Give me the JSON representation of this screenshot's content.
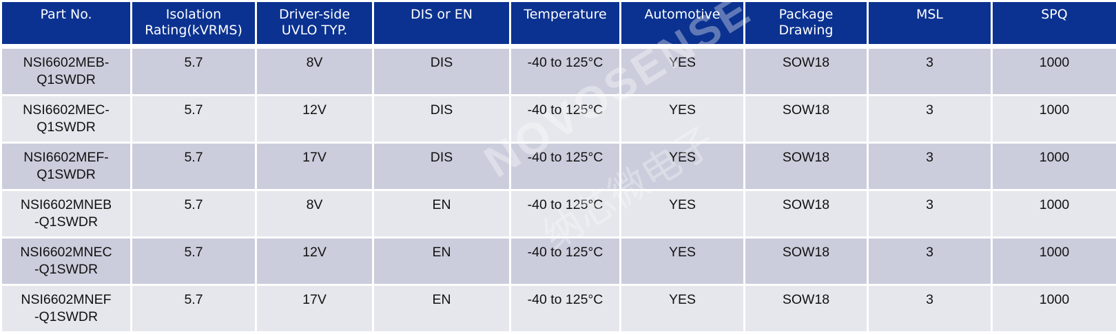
{
  "headers": [
    [
      "Part No.",
      ""
    ],
    [
      "Isolation",
      "Rating(kVRMS)"
    ],
    [
      "Driver-side",
      "UVLO TYP."
    ],
    [
      "DIS or EN",
      ""
    ],
    [
      "Temperature",
      ""
    ],
    [
      "Automotive",
      ""
    ],
    [
      "Package",
      "Drawing"
    ],
    [
      "MSL",
      ""
    ],
    [
      "SPQ",
      ""
    ]
  ],
  "rows": [
    [
      [
        "NSI6602MEB-",
        "Q1SWDR"
      ],
      "5.7",
      "8V",
      "DIS",
      "-40 to 125°C",
      "YES",
      "SOW18",
      "3",
      "1000"
    ],
    [
      [
        "NSI6602MEC-",
        "Q1SWDR"
      ],
      "5.7",
      "12V",
      "DIS",
      "-40 to 125°C",
      "YES",
      "SOW18",
      "3",
      "1000"
    ],
    [
      [
        "NSI6602MEF-",
        "Q1SWDR"
      ],
      "5.7",
      "17V",
      "DIS",
      "-40 to 125°C",
      "YES",
      "SOW18",
      "3",
      "1000"
    ],
    [
      [
        "NSI6602MNEB",
        "-Q1SWDR"
      ],
      "5.7",
      "8V",
      "EN",
      "-40 to 125°C",
      "YES",
      "SOW18",
      "3",
      "1000"
    ],
    [
      [
        "NSI6602MNEC",
        "-Q1SWDR"
      ],
      "5.7",
      "12V",
      "EN",
      "-40 to 125°C",
      "YES",
      "SOW18",
      "3",
      "1000"
    ],
    [
      [
        "NSI6602MNEF",
        "-Q1SWDR"
      ],
      "5.7",
      "17V",
      "EN",
      "-40 to 125°C",
      "YES",
      "SOW18",
      "3",
      "1000"
    ]
  ],
  "watermark": {
    "brand": "NOVOSENSE",
    "chinese": "纳芯微电子"
  },
  "colors": {
    "header_bg": "#0b3290",
    "row_odd": "#cbcddc",
    "row_even": "#e6e7ed"
  }
}
